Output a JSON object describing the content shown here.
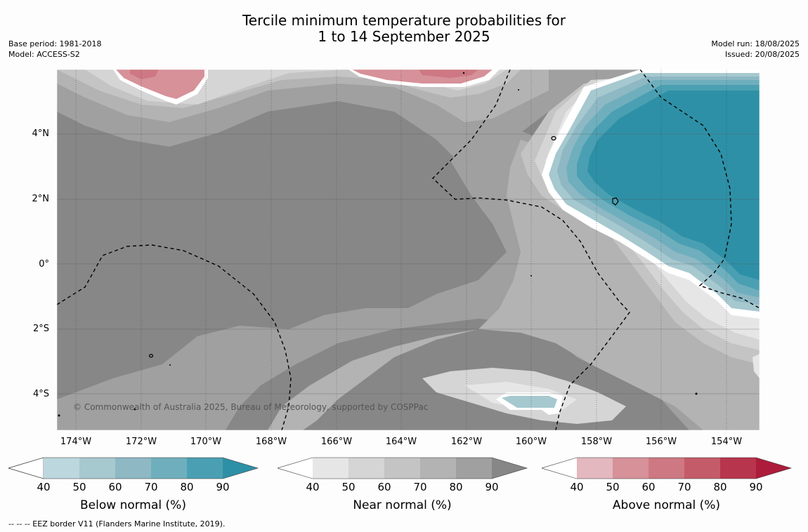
{
  "title_line1": "Tercile minimum temperature probabilities for",
  "title_line2": "1 to 14 September 2025",
  "base_period": "Base period: 1981-2018",
  "model": "Model: ACCESS-S2",
  "model_run": "Model run: 18/08/2025",
  "issued": "Issued: 20/08/2025",
  "latitude_labels": [
    "4°N",
    "2°N",
    "0°",
    "2°S",
    "4°S"
  ],
  "longitude_labels": [
    "174°W",
    "172°W",
    "170°W",
    "168°W",
    "166°W",
    "164°W",
    "162°W",
    "160°W",
    "158°W",
    "156°W",
    "154°W"
  ],
  "copyright": "© Commonwealth of Australia 2025, Bureau of Meteorology, supported by COSPPac",
  "footer_note": "-- -- -- EEZ border V11 (Flanders Marine Institute, 2019).",
  "colorbars": [
    {
      "title": "Below normal (%)",
      "ticks": [
        "40",
        "50",
        "60",
        "70",
        "80",
        "90"
      ],
      "colors": [
        "#ffffff",
        "#bdd7de",
        "#a6c8cf",
        "#8db8c4",
        "#6fafbd",
        "#4aa0b2",
        "#2e90a6"
      ]
    },
    {
      "title": "Near normal (%)",
      "ticks": [
        "40",
        "50",
        "60",
        "70",
        "80",
        "90"
      ],
      "colors": [
        "#ffffff",
        "#e6e6e6",
        "#d5d5d5",
        "#c4c4c4",
        "#b3b3b3",
        "#a0a0a0",
        "#878787"
      ]
    },
    {
      "title": "Above normal (%)",
      "ticks": [
        "40",
        "50",
        "60",
        "70",
        "80",
        "90"
      ],
      "colors": [
        "#ffffff",
        "#e3b8bf",
        "#d69199",
        "#cd7882",
        "#c45b69",
        "#b8364d",
        "#ad1c3a"
      ]
    }
  ]
}
